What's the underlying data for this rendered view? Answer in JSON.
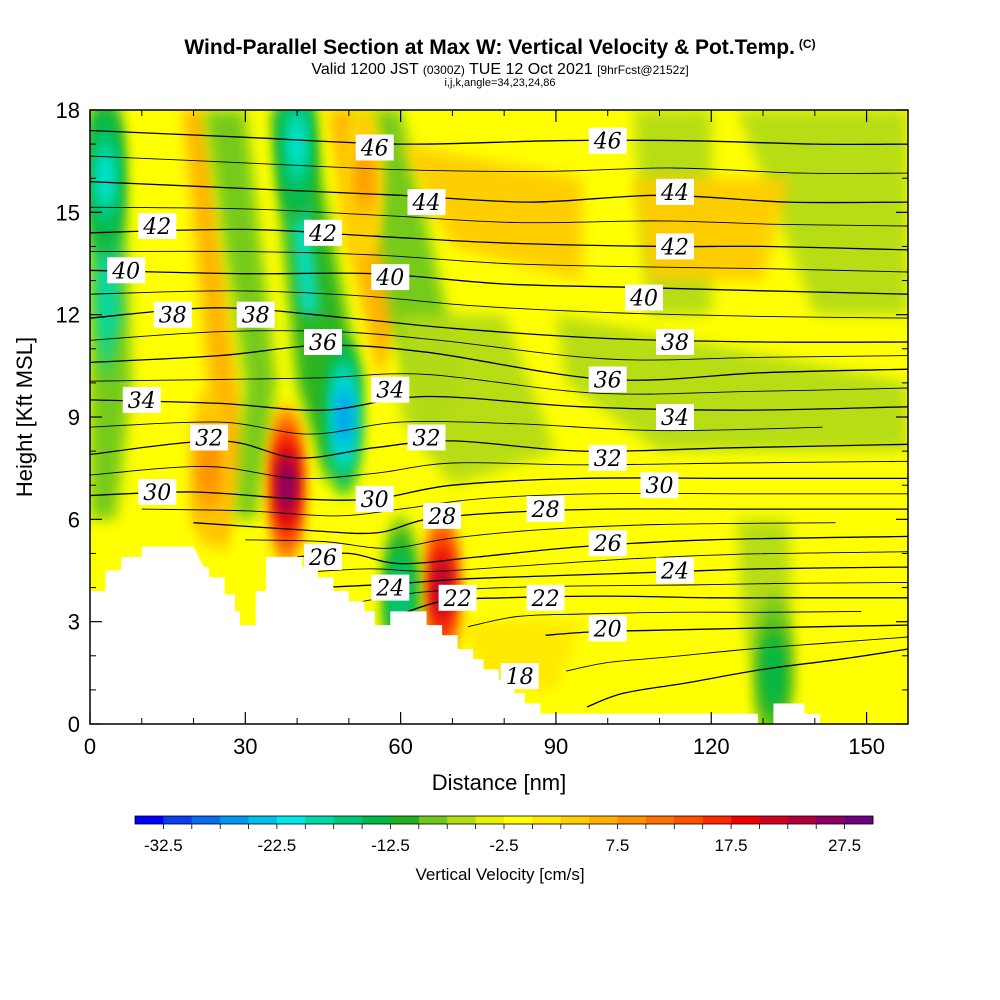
{
  "title": "Wind-Parallel Section at Max W: Vertical Velocity & Pot.Temp.",
  "title_mark": "(C)",
  "subtitle_main": "Valid 1200 JST",
  "subtitle_utc": "(0300Z)",
  "subtitle_date": "TUE 12 Oct 2021",
  "subtitle_fcst": "[9hrFcst@2152z]",
  "subtitle_index": "i,j,k,angle=34,23,24,86",
  "chart_data": {
    "type": "heatmap",
    "xlabel": "Distance [nm]",
    "ylabel": "Height [Kft MSL]",
    "xlim": [
      0,
      158
    ],
    "ylim": [
      0,
      18
    ],
    "xticks": [
      0,
      30,
      60,
      90,
      120,
      150
    ],
    "yticks": [
      0,
      3,
      6,
      9,
      12,
      15,
      18
    ],
    "grid": false,
    "colorbar": {
      "title": "Vertical Velocity [cm/s]",
      "tick_labels": [
        "-32.5",
        "-22.5",
        "-12.5",
        "-2.5",
        "7.5",
        "17.5",
        "27.5"
      ],
      "colors": [
        "#0000ff",
        "#0a3cf2",
        "#0b6cf0",
        "#0096ee",
        "#00bfe8",
        "#00e8e8",
        "#00d8a8",
        "#00c878",
        "#00b848",
        "#20b020",
        "#6ec81c",
        "#b4dc14",
        "#e6f000",
        "#ffff00",
        "#ffe800",
        "#ffcc00",
        "#ffb000",
        "#ff9000",
        "#ff7000",
        "#ff5000",
        "#ff2800",
        "#f00000",
        "#d00020",
        "#b00040",
        "#8c0060",
        "#6a0080"
      ]
    },
    "vertical_velocity_features": [
      {
        "type": "updraft",
        "x": 38,
        "y": 7.0,
        "peak": 30
      },
      {
        "type": "updraft",
        "x": 68,
        "y": 4.0,
        "peak": 27
      },
      {
        "type": "updraft",
        "x": 23,
        "y": 7.5,
        "peak": 12
      },
      {
        "type": "updraft",
        "x": 53,
        "y": 16.0,
        "peak": 10
      },
      {
        "type": "downdraft",
        "x": 49,
        "y": 9.0,
        "peak": -25
      },
      {
        "type": "downdraft",
        "x": 3,
        "y": 16.0,
        "peak": -20
      },
      {
        "type": "downdraft",
        "x": 40,
        "y": 17.0,
        "peak": -20
      },
      {
        "type": "downdraft",
        "x": 60,
        "y": 3.8,
        "peak": -15
      },
      {
        "type": "downdraft",
        "x": 132,
        "y": 1.5,
        "peak": -12
      }
    ],
    "potential_temperature_contours": [
      {
        "value": 18,
        "points": [
          [
            96,
            0.5
          ],
          [
            103,
            0.9
          ],
          [
            115,
            1.2
          ],
          [
            130,
            1.6
          ],
          [
            145,
            1.9
          ],
          [
            158,
            2.2
          ]
        ]
      },
      {
        "value": 20,
        "points": [
          [
            88,
            2.6
          ],
          [
            97,
            2.7
          ],
          [
            110,
            2.75
          ],
          [
            125,
            2.8
          ],
          [
            140,
            2.85
          ],
          [
            158,
            2.9
          ]
        ]
      },
      {
        "value": 22,
        "points": [
          [
            58,
            3.1
          ],
          [
            68,
            3.6
          ],
          [
            80,
            3.7
          ],
          [
            100,
            3.75
          ],
          [
            120,
            3.7
          ],
          [
            140,
            3.7
          ],
          [
            158,
            3.7
          ]
        ]
      },
      {
        "value": 24,
        "points": [
          [
            44,
            4.0
          ],
          [
            58,
            4.1
          ],
          [
            72,
            4.25
          ],
          [
            90,
            4.35
          ],
          [
            110,
            4.45
          ],
          [
            130,
            4.55
          ],
          [
            158,
            4.6
          ]
        ]
      },
      {
        "value": 26,
        "points": [
          [
            40,
            4.9
          ],
          [
            50,
            5.0
          ],
          [
            60,
            4.7
          ],
          [
            75,
            4.9
          ],
          [
            95,
            5.2
          ],
          [
            120,
            5.4
          ],
          [
            158,
            5.5
          ]
        ]
      },
      {
        "value": 28,
        "points": [
          [
            20,
            5.9
          ],
          [
            40,
            5.7
          ],
          [
            55,
            5.6
          ],
          [
            65,
            6.0
          ],
          [
            80,
            6.2
          ],
          [
            100,
            6.3
          ],
          [
            130,
            6.3
          ],
          [
            158,
            6.3
          ]
        ]
      },
      {
        "value": 30,
        "points": [
          [
            0,
            6.7
          ],
          [
            20,
            6.8
          ],
          [
            40,
            6.6
          ],
          [
            55,
            6.6
          ],
          [
            70,
            7.0
          ],
          [
            95,
            7.2
          ],
          [
            125,
            7.2
          ],
          [
            158,
            7.2
          ]
        ]
      },
      {
        "value": 32,
        "points": [
          [
            0,
            7.9
          ],
          [
            25,
            8.3
          ],
          [
            40,
            7.8
          ],
          [
            55,
            8.1
          ],
          [
            70,
            8.3
          ],
          [
            95,
            8.0
          ],
          [
            125,
            8.1
          ],
          [
            158,
            8.2
          ]
        ]
      },
      {
        "value": 34,
        "points": [
          [
            0,
            9.5
          ],
          [
            25,
            9.4
          ],
          [
            45,
            9.2
          ],
          [
            65,
            9.6
          ],
          [
            95,
            9.3
          ],
          [
            125,
            9.2
          ],
          [
            158,
            9.3
          ]
        ]
      },
      {
        "value": 36,
        "points": [
          [
            0,
            10.6
          ],
          [
            25,
            10.8
          ],
          [
            45,
            11.1
          ],
          [
            65,
            10.9
          ],
          [
            100,
            10.1
          ],
          [
            130,
            10.3
          ],
          [
            158,
            10.4
          ]
        ]
      },
      {
        "value": 38,
        "points": [
          [
            0,
            11.9
          ],
          [
            25,
            12.2
          ],
          [
            50,
            11.9
          ],
          [
            70,
            11.6
          ],
          [
            100,
            11.3
          ],
          [
            130,
            11.2
          ],
          [
            158,
            11.2
          ]
        ]
      },
      {
        "value": 40,
        "points": [
          [
            0,
            13.3
          ],
          [
            30,
            13.2
          ],
          [
            55,
            13.2
          ],
          [
            80,
            12.9
          ],
          [
            105,
            12.8
          ],
          [
            130,
            12.7
          ],
          [
            158,
            12.6
          ]
        ]
      },
      {
        "value": 42,
        "points": [
          [
            0,
            14.4
          ],
          [
            30,
            14.5
          ],
          [
            55,
            14.3
          ],
          [
            80,
            14.1
          ],
          [
            110,
            14.0
          ],
          [
            130,
            14.0
          ],
          [
            158,
            13.9
          ]
        ]
      },
      {
        "value": 44,
        "points": [
          [
            0,
            15.9
          ],
          [
            30,
            15.7
          ],
          [
            60,
            15.5
          ],
          [
            85,
            15.3
          ],
          [
            110,
            15.5
          ],
          [
            135,
            15.3
          ],
          [
            158,
            15.3
          ]
        ]
      },
      {
        "value": 46,
        "points": [
          [
            0,
            17.4
          ],
          [
            30,
            17.2
          ],
          [
            60,
            17.0
          ],
          [
            90,
            17.1
          ],
          [
            115,
            17.1
          ],
          [
            140,
            17.0
          ],
          [
            158,
            17.0
          ]
        ]
      }
    ],
    "contour_labels": [
      {
        "text": "46",
        "x": 55,
        "y": 16.9
      },
      {
        "text": "46",
        "x": 100,
        "y": 17.1
      },
      {
        "text": "44",
        "x": 65,
        "y": 15.3
      },
      {
        "text": "44",
        "x": 113,
        "y": 15.6
      },
      {
        "text": "42",
        "x": 13,
        "y": 14.6
      },
      {
        "text": "42",
        "x": 45,
        "y": 14.4
      },
      {
        "text": "42",
        "x": 113,
        "y": 14.0
      },
      {
        "text": "40",
        "x": 7,
        "y": 13.3
      },
      {
        "text": "40",
        "x": 58,
        "y": 13.1
      },
      {
        "text": "40",
        "x": 107,
        "y": 12.5
      },
      {
        "text": "38",
        "x": 16,
        "y": 12.0
      },
      {
        "text": "38",
        "x": 32,
        "y": 12.0
      },
      {
        "text": "38",
        "x": 113,
        "y": 11.2
      },
      {
        "text": "36",
        "x": 45,
        "y": 11.2
      },
      {
        "text": "36",
        "x": 100,
        "y": 10.1
      },
      {
        "text": "34",
        "x": 10,
        "y": 9.5
      },
      {
        "text": "34",
        "x": 58,
        "y": 9.8
      },
      {
        "text": "34",
        "x": 113,
        "y": 9.0
      },
      {
        "text": "32",
        "x": 23,
        "y": 8.4
      },
      {
        "text": "32",
        "x": 65,
        "y": 8.4
      },
      {
        "text": "32",
        "x": 100,
        "y": 7.8
      },
      {
        "text": "30",
        "x": 13,
        "y": 6.8
      },
      {
        "text": "30",
        "x": 55,
        "y": 6.6
      },
      {
        "text": "30",
        "x": 110,
        "y": 7.0
      },
      {
        "text": "28",
        "x": 68,
        "y": 6.1
      },
      {
        "text": "28",
        "x": 88,
        "y": 6.3
      },
      {
        "text": "26",
        "x": 45,
        "y": 4.9
      },
      {
        "text": "26",
        "x": 100,
        "y": 5.3
      },
      {
        "text": "24",
        "x": 58,
        "y": 4.0
      },
      {
        "text": "24",
        "x": 113,
        "y": 4.5
      },
      {
        "text": "22",
        "x": 71,
        "y": 3.7
      },
      {
        "text": "22",
        "x": 88,
        "y": 3.7
      },
      {
        "text": "20",
        "x": 100,
        "y": 2.8
      },
      {
        "text": "18",
        "x": 83,
        "y": 1.4
      }
    ],
    "terrain": [
      [
        0,
        0
      ],
      [
        0,
        3.9
      ],
      [
        3,
        3.9
      ],
      [
        3,
        4.5
      ],
      [
        6,
        4.5
      ],
      [
        6,
        4.9
      ],
      [
        10,
        4.9
      ],
      [
        10,
        5.2
      ],
      [
        15,
        5.2
      ],
      [
        20,
        5.2
      ],
      [
        22,
        4.6
      ],
      [
        23,
        4.6
      ],
      [
        23,
        4.3
      ],
      [
        26,
        4.3
      ],
      [
        26,
        3.8
      ],
      [
        28,
        3.8
      ],
      [
        28,
        3.3
      ],
      [
        29,
        3.3
      ],
      [
        29,
        2.9
      ],
      [
        32,
        2.9
      ],
      [
        32,
        3.9
      ],
      [
        34,
        3.9
      ],
      [
        34,
        4.9
      ],
      [
        41,
        4.9
      ],
      [
        41,
        4.6
      ],
      [
        44,
        4.6
      ],
      [
        44,
        4.3
      ],
      [
        47,
        4.3
      ],
      [
        47,
        3.9
      ],
      [
        50,
        3.9
      ],
      [
        50,
        3.6
      ],
      [
        53,
        3.6
      ],
      [
        53,
        3.3
      ],
      [
        55,
        3.3
      ],
      [
        55,
        2.9
      ],
      [
        58,
        2.9
      ],
      [
        58,
        3.3
      ],
      [
        65,
        3.3
      ],
      [
        65,
        2.9
      ],
      [
        68,
        2.9
      ],
      [
        68,
        2.6
      ],
      [
        71,
        2.6
      ],
      [
        71,
        2.2
      ],
      [
        74,
        2.2
      ],
      [
        74,
        1.9
      ],
      [
        76,
        1.9
      ],
      [
        76,
        1.6
      ],
      [
        79,
        1.6
      ],
      [
        79,
        1.3
      ],
      [
        82,
        1.3
      ],
      [
        82,
        0.9
      ],
      [
        84,
        0.9
      ],
      [
        84,
        0.6
      ],
      [
        87,
        0.6
      ],
      [
        87,
        0.3
      ],
      [
        90,
        0.3
      ],
      [
        90,
        0.3
      ],
      [
        129,
        0.3
      ],
      [
        129,
        0
      ],
      [
        132,
        0
      ],
      [
        132,
        0.6
      ],
      [
        138,
        0.6
      ],
      [
        138,
        0.3
      ],
      [
        141,
        0.3
      ],
      [
        141,
        0
      ],
      [
        158,
        0
      ],
      [
        158,
        0
      ]
    ]
  }
}
